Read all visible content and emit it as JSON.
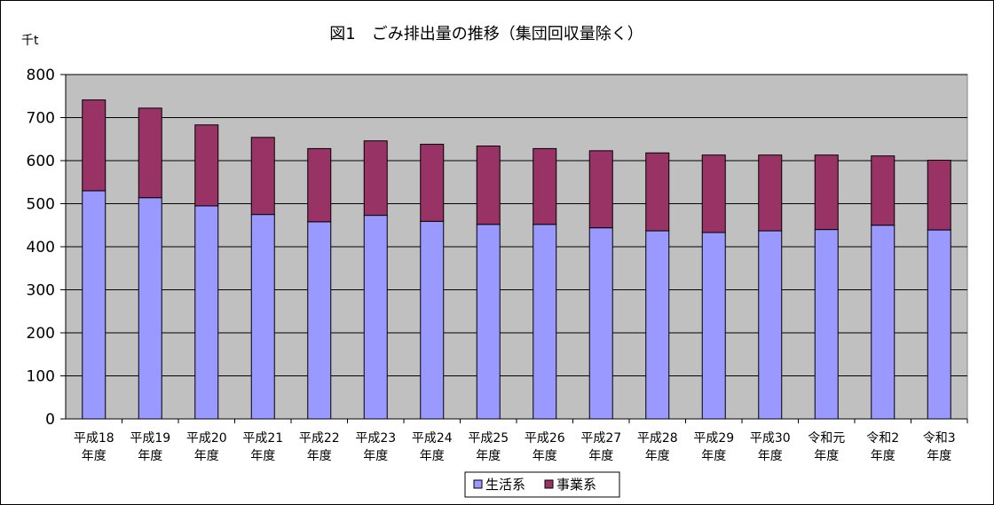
{
  "chart_data": {
    "type": "bar",
    "stacked": true,
    "title": "図1　ごみ排出量の推移（集団回収量除く）",
    "ylabel": "千t",
    "xlabel": "",
    "ylim": [
      0,
      800
    ],
    "yticks": [
      0,
      100,
      200,
      300,
      400,
      500,
      600,
      700,
      800
    ],
    "grid": true,
    "legend": "bottom",
    "categories": [
      [
        "平成18",
        "年度"
      ],
      [
        "平成19",
        "年度"
      ],
      [
        "平成20",
        "年度"
      ],
      [
        "平成21",
        "年度"
      ],
      [
        "平成22",
        "年度"
      ],
      [
        "平成23",
        "年度"
      ],
      [
        "平成24",
        "年度"
      ],
      [
        "平成25",
        "年度"
      ],
      [
        "平成26",
        "年度"
      ],
      [
        "平成27",
        "年度"
      ],
      [
        "平成28",
        "年度"
      ],
      [
        "平成29",
        "年度"
      ],
      [
        "平成30",
        "年度"
      ],
      [
        "令和元",
        "年度"
      ],
      [
        "令和2",
        "年度"
      ],
      [
        "令和3",
        "年度"
      ]
    ],
    "series": [
      {
        "name": "生活系",
        "color": "#9999ff",
        "values": [
          530,
          514,
          495,
          475,
          458,
          473,
          459,
          452,
          452,
          444,
          437,
          433,
          437,
          440,
          450,
          439
        ]
      },
      {
        "name": "事業系",
        "color": "#993366",
        "values": [
          211,
          208,
          188,
          179,
          170,
          173,
          179,
          182,
          176,
          179,
          181,
          180,
          176,
          173,
          161,
          162
        ]
      }
    ],
    "plot_background": "#c0c0c0"
  }
}
